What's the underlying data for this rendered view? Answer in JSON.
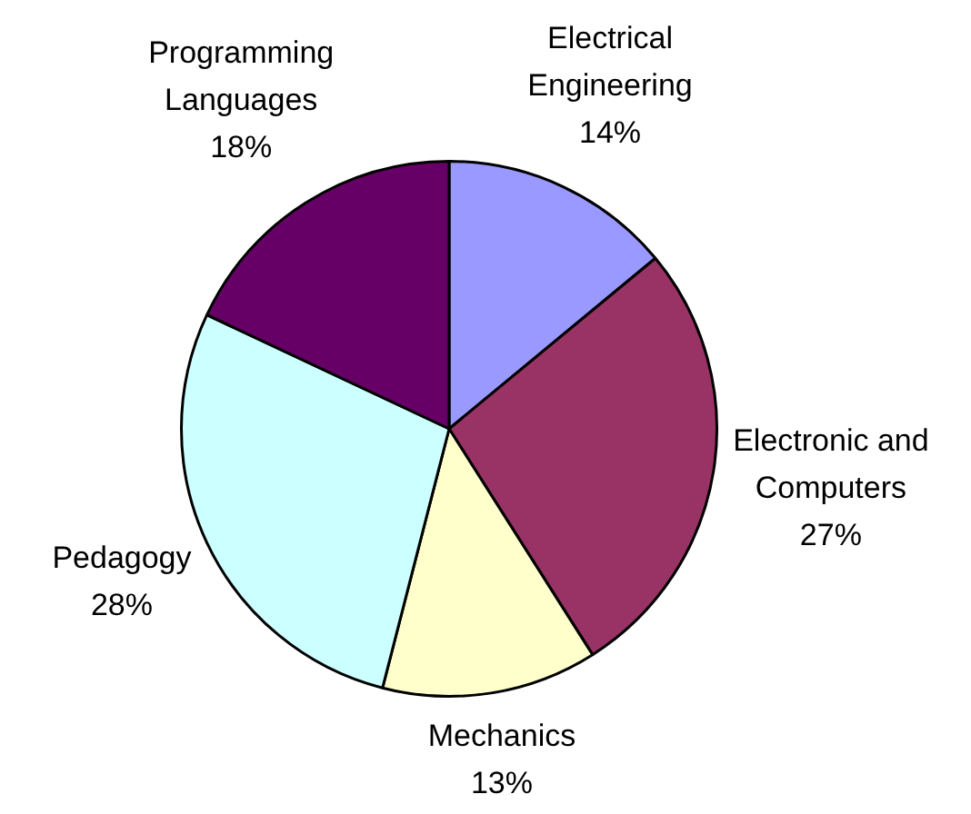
{
  "chart_data": {
    "type": "pie",
    "categories": [
      "Electrical Engineering",
      "Electronic and Computers",
      "Mechanics",
      "Pedagogy",
      "Programming Languages"
    ],
    "values": [
      14,
      27,
      13,
      28,
      18
    ],
    "value_labels": [
      "14%",
      "27%",
      "13%",
      "28%",
      "18%"
    ],
    "colors": [
      "#9999ff",
      "#993366",
      "#ffffcc",
      "#ccffff",
      "#660066"
    ],
    "legend": false
  }
}
